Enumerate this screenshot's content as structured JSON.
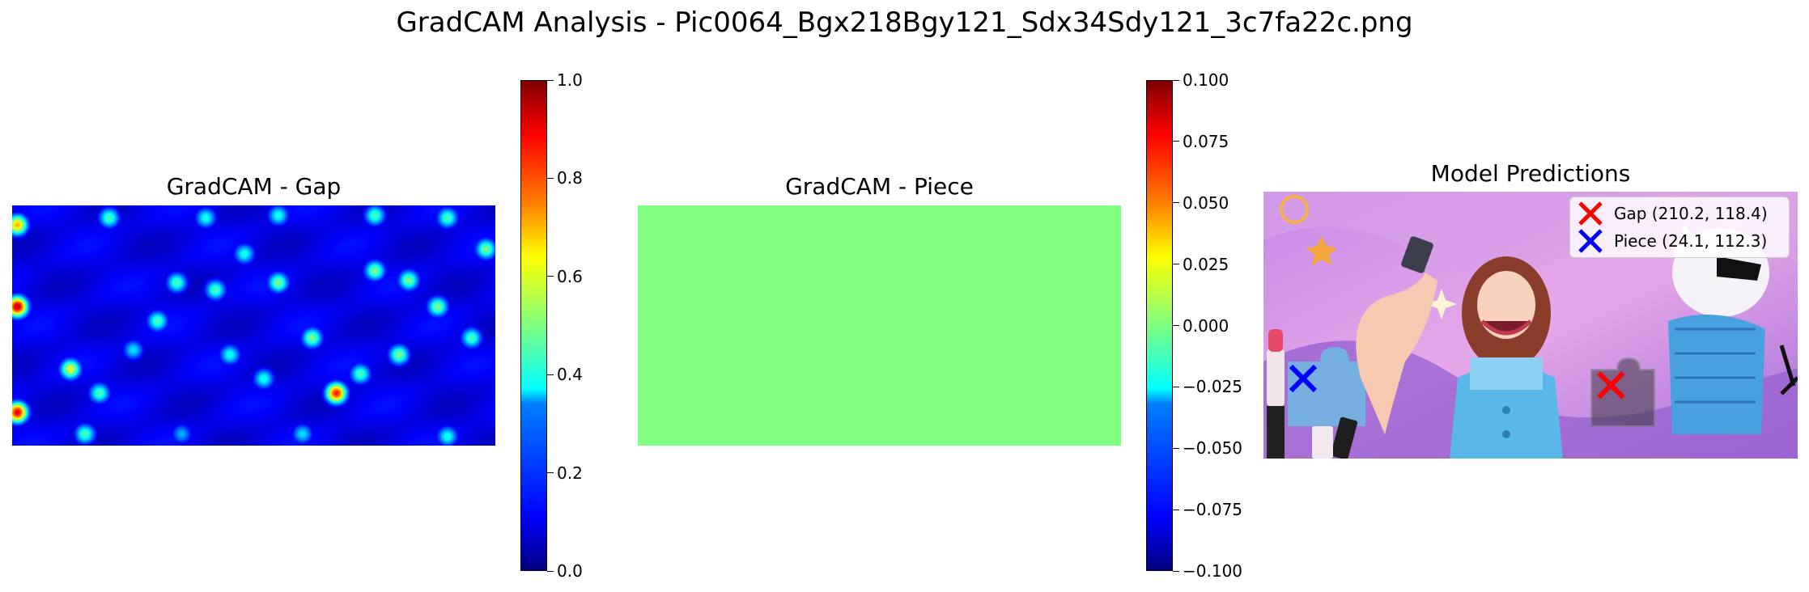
{
  "suptitle": "GradCAM Analysis - Pic0064_Bgx218Bgy121_Sdx34Sdy121_3c7fa22c.png",
  "chart_data": [
    {
      "type": "heatmap",
      "title": "GradCAM - Gap",
      "colormap": "jet",
      "colorbar": {
        "range": [
          0.0,
          1.0
        ],
        "ticks": [
          "0.0",
          "0.2",
          "0.4",
          "0.6",
          "0.8",
          "1.0"
        ]
      },
      "axes": "off",
      "hotspots": [
        {
          "x": 0.01,
          "y": 0.42,
          "v": 0.95
        },
        {
          "x": 0.01,
          "y": 0.86,
          "v": 0.9
        },
        {
          "x": 0.01,
          "y": 0.08,
          "v": 0.7
        },
        {
          "x": 0.67,
          "y": 0.78,
          "v": 0.85
        },
        {
          "x": 0.12,
          "y": 0.68,
          "v": 0.6
        },
        {
          "x": 0.34,
          "y": 0.32,
          "v": 0.45
        },
        {
          "x": 0.42,
          "y": 0.35,
          "v": 0.45
        },
        {
          "x": 0.55,
          "y": 0.32,
          "v": 0.5
        },
        {
          "x": 0.62,
          "y": 0.55,
          "v": 0.5
        },
        {
          "x": 0.75,
          "y": 0.27,
          "v": 0.5
        },
        {
          "x": 0.82,
          "y": 0.31,
          "v": 0.5
        },
        {
          "x": 0.88,
          "y": 0.42,
          "v": 0.5
        },
        {
          "x": 0.8,
          "y": 0.62,
          "v": 0.5
        },
        {
          "x": 0.72,
          "y": 0.7,
          "v": 0.45
        },
        {
          "x": 0.3,
          "y": 0.48,
          "v": 0.45
        },
        {
          "x": 0.18,
          "y": 0.78,
          "v": 0.45
        },
        {
          "x": 0.45,
          "y": 0.62,
          "v": 0.4
        },
        {
          "x": 0.52,
          "y": 0.72,
          "v": 0.4
        },
        {
          "x": 0.95,
          "y": 0.55,
          "v": 0.45
        },
        {
          "x": 0.2,
          "y": 0.05,
          "v": 0.45
        },
        {
          "x": 0.4,
          "y": 0.05,
          "v": 0.4
        },
        {
          "x": 0.55,
          "y": 0.04,
          "v": 0.4
        },
        {
          "x": 0.75,
          "y": 0.04,
          "v": 0.45
        },
        {
          "x": 0.9,
          "y": 0.05,
          "v": 0.45
        },
        {
          "x": 0.98,
          "y": 0.18,
          "v": 0.5
        },
        {
          "x": 0.9,
          "y": 0.96,
          "v": 0.4
        },
        {
          "x": 0.6,
          "y": 0.95,
          "v": 0.35
        },
        {
          "x": 0.35,
          "y": 0.95,
          "v": 0.3
        },
        {
          "x": 0.15,
          "y": 0.95,
          "v": 0.45
        },
        {
          "x": 0.25,
          "y": 0.6,
          "v": 0.35
        },
        {
          "x": 0.48,
          "y": 0.2,
          "v": 0.4
        }
      ]
    },
    {
      "type": "heatmap",
      "title": "GradCAM - Piece",
      "colormap": "jet",
      "uniform_value": 0.0,
      "colorbar": {
        "range": [
          -0.1,
          0.1
        ],
        "ticks": [
          "−0.100",
          "−0.075",
          "−0.050",
          "−0.025",
          "0.000",
          "0.025",
          "0.050",
          "0.075",
          "0.100"
        ]
      },
      "axes": "off"
    },
    {
      "type": "scatter",
      "title": "Model Predictions",
      "axes": "off",
      "image_size": [
        236,
        120
      ],
      "series": [
        {
          "name": "Gap (210.2, 118.4)",
          "marker": "x",
          "color": "#ff0000",
          "x": [
            153.5
          ],
          "y": [
            87.0
          ]
        },
        {
          "name": "Piece (24.1, 112.3)",
          "marker": "x",
          "color": "#0000ff",
          "x": [
            17.5
          ],
          "y": [
            84.0
          ]
        }
      ],
      "legend": "upper-right"
    }
  ],
  "colors": {
    "piece_fill": "#80ff7f",
    "bg_purple": "#b87fe0",
    "bg_pink": "#e9a7e6"
  }
}
